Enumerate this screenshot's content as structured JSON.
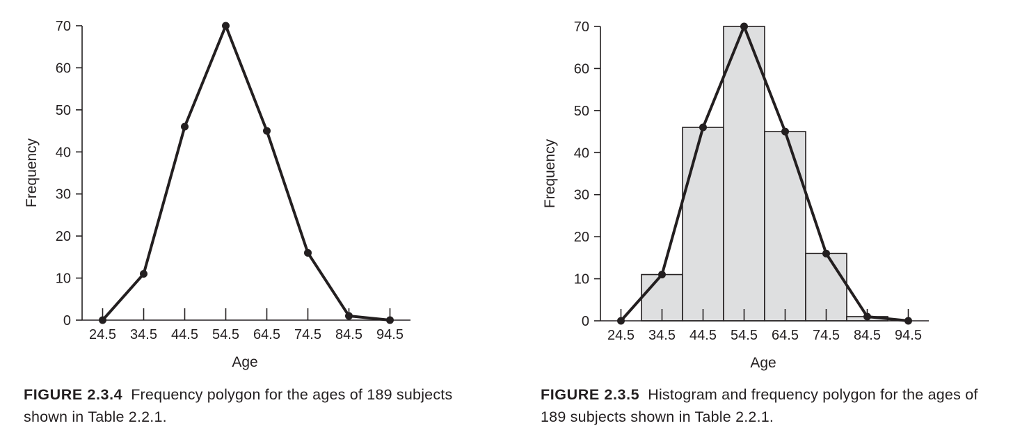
{
  "colors": {
    "ink": "#231f20",
    "bar_fill": "#dedfe0"
  },
  "figures": [
    {
      "label": "FIGURE 2.3.4",
      "caption": "Frequency polygon for the ages of 189 subjects shown in Table 2.2.1."
    },
    {
      "label": "FIGURE 2.3.5",
      "caption": "Histogram and frequency polygon for the ages of 189 subjects shown in Table 2.2.1."
    }
  ],
  "chart_data": [
    {
      "type": "line",
      "xlabel": "Age",
      "ylabel": "Frequency",
      "x_ticks": [
        "24.5",
        "34.5",
        "44.5",
        "54.5",
        "64.5",
        "74.5",
        "84.5",
        "94.5"
      ],
      "y_ticks": [
        "0",
        "10",
        "20",
        "30",
        "40",
        "50",
        "60",
        "70"
      ],
      "ylim": [
        0,
        70
      ],
      "xlim": [
        19.5,
        99.5
      ],
      "grid": false,
      "series": [
        {
          "x": [
            24.5,
            34.5,
            44.5,
            54.5,
            64.5,
            74.5,
            84.5,
            94.5
          ],
          "values": [
            0,
            11,
            46,
            70,
            45,
            16,
            1,
            0
          ]
        }
      ]
    },
    {
      "type": "bar",
      "xlabel": "Age",
      "ylabel": "Frequency",
      "x_ticks": [
        "24.5",
        "34.5",
        "44.5",
        "54.5",
        "64.5",
        "74.5",
        "84.5",
        "94.5"
      ],
      "y_ticks": [
        "0",
        "10",
        "20",
        "30",
        "40",
        "50",
        "60",
        "70"
      ],
      "ylim": [
        0,
        70
      ],
      "xlim": [
        19.5,
        99.5
      ],
      "grid": false,
      "bars": [
        {
          "from": 29.5,
          "to": 39.5,
          "value": 11
        },
        {
          "from": 39.5,
          "to": 49.5,
          "value": 46
        },
        {
          "from": 49.5,
          "to": 59.5,
          "value": 70
        },
        {
          "from": 59.5,
          "to": 69.5,
          "value": 45
        },
        {
          "from": 69.5,
          "to": 79.5,
          "value": 16
        },
        {
          "from": 79.5,
          "to": 89.5,
          "value": 1
        }
      ],
      "series": [
        {
          "x": [
            24.5,
            34.5,
            44.5,
            54.5,
            64.5,
            74.5,
            84.5,
            94.5
          ],
          "values": [
            0,
            11,
            46,
            70,
            45,
            16,
            1,
            0
          ]
        }
      ]
    }
  ]
}
